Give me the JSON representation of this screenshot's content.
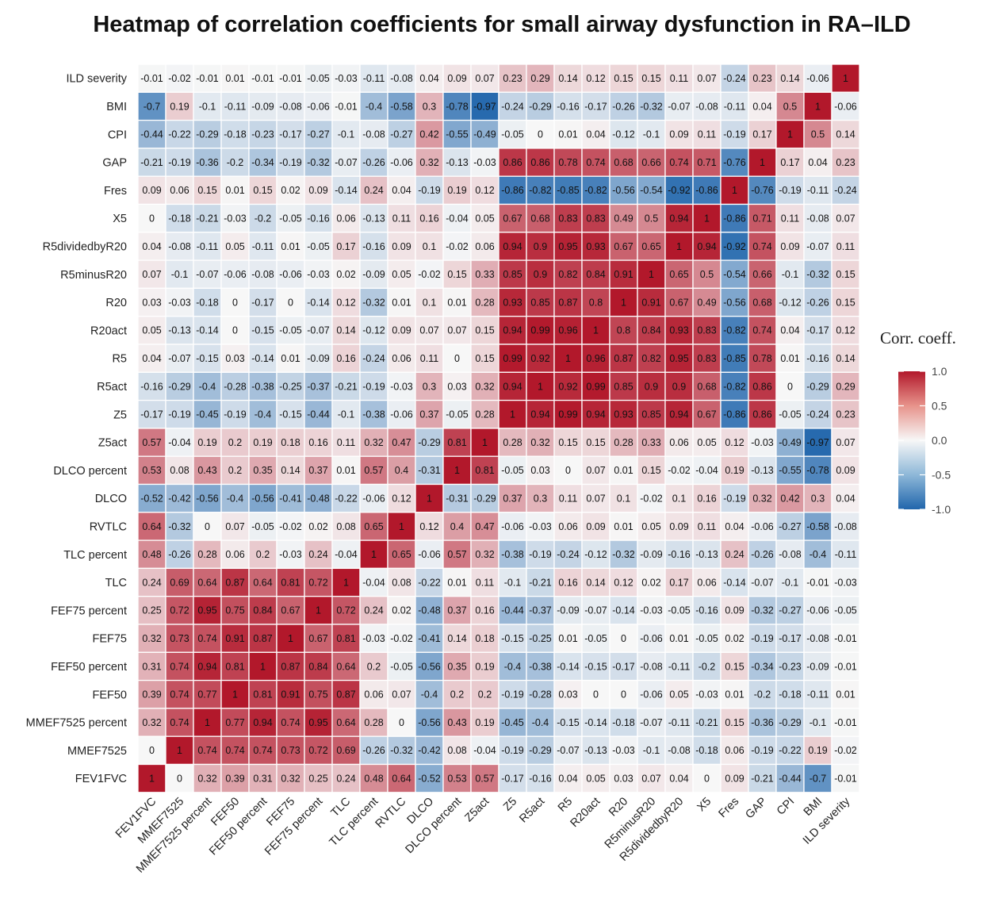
{
  "chart_data": {
    "type": "heatmap",
    "title": "Heatmap of correlation coefficients for small airway dysfunction in RA–ILD",
    "legend": {
      "title": "Corr. coeff.",
      "position": "right",
      "ticks": [
        "1.0",
        "0.5",
        "0.0",
        "-0.5",
        "-1.0"
      ],
      "range": [
        -1,
        1
      ]
    },
    "colors": {
      "low": "#2166ac",
      "mid": "#f7f7f7",
      "high": "#b2182b",
      "grid": "#ffffff"
    },
    "x_labels": [
      "FEV1FVC",
      "MMEF7525",
      "MMEF7525 percent",
      "FEF50",
      "FEF50 percent",
      "FEF75",
      "FEF75 percent",
      "TLC",
      "TLC percent",
      "RVTLC",
      "DLCO",
      "DLCO percent",
      "Z5act",
      "Z5",
      "R5act",
      "R5",
      "R20act",
      "R20",
      "R5minusR20",
      "R5dividedbyR20",
      "X5",
      "Fres",
      "GAP",
      "CPI",
      "BMI",
      "ILD severity"
    ],
    "y_labels": [
      "ILD severity",
      "BMI",
      "CPI",
      "GAP",
      "Fres",
      "X5",
      "R5dividedbyR20",
      "R5minusR20",
      "R20",
      "R20act",
      "R5",
      "R5act",
      "Z5",
      "Z5act",
      "DLCO percent",
      "DLCO",
      "RVTLC",
      "TLC percent",
      "TLC",
      "FEF75 percent",
      "FEF75",
      "FEF50 percent",
      "FEF50",
      "MMEF7525 percent",
      "MMEF7525",
      "FEV1FVC"
    ],
    "values": [
      [
        "-0.01",
        "-0.02",
        "-0.01",
        "0.01",
        "-0.01",
        "-0.01",
        "-0.05",
        "-0.03",
        "-0.11",
        "-0.08",
        "0.04",
        "0.09",
        "0.07",
        "0.23",
        "0.29",
        "0.14",
        "0.12",
        "0.15",
        "0.15",
        "0.11",
        "0.07",
        "-0.24",
        "0.23",
        "0.14",
        "-0.06",
        "1"
      ],
      [
        "-0.7",
        "0.19",
        "-0.1",
        "-0.11",
        "-0.09",
        "-0.08",
        "-0.06",
        "-0.01",
        "-0.4",
        "-0.58",
        "0.3",
        "-0.78",
        "-0.97",
        "-0.24",
        "-0.29",
        "-0.16",
        "-0.17",
        "-0.26",
        "-0.32",
        "-0.07",
        "-0.08",
        "-0.11",
        "0.04",
        "0.5",
        "1",
        "-0.06"
      ],
      [
        "-0.44",
        "-0.22",
        "-0.29",
        "-0.18",
        "-0.23",
        "-0.17",
        "-0.27",
        "-0.1",
        "-0.08",
        "-0.27",
        "0.42",
        "-0.55",
        "-0.49",
        "-0.05",
        "0",
        "0.01",
        "0.04",
        "-0.12",
        "-0.1",
        "0.09",
        "0.11",
        "-0.19",
        "0.17",
        "1",
        "0.5",
        "0.14"
      ],
      [
        "-0.21",
        "-0.19",
        "-0.36",
        "-0.2",
        "-0.34",
        "-0.19",
        "-0.32",
        "-0.07",
        "-0.26",
        "-0.06",
        "0.32",
        "-0.13",
        "-0.03",
        "0.86",
        "0.86",
        "0.78",
        "0.74",
        "0.68",
        "0.66",
        "0.74",
        "0.71",
        "-0.76",
        "1",
        "0.17",
        "0.04",
        "0.23"
      ],
      [
        "0.09",
        "0.06",
        "0.15",
        "0.01",
        "0.15",
        "0.02",
        "0.09",
        "-0.14",
        "0.24",
        "0.04",
        "-0.19",
        "0.19",
        "0.12",
        "-0.86",
        "-0.82",
        "-0.85",
        "-0.82",
        "-0.56",
        "-0.54",
        "-0.92",
        "-0.86",
        "1",
        "-0.76",
        "-0.19",
        "-0.11",
        "-0.24"
      ],
      [
        "0",
        "-0.18",
        "-0.21",
        "-0.03",
        "-0.2",
        "-0.05",
        "-0.16",
        "0.06",
        "-0.13",
        "0.11",
        "0.16",
        "-0.04",
        "0.05",
        "0.67",
        "0.68",
        "0.83",
        "0.83",
        "0.49",
        "0.5",
        "0.94",
        "1",
        "-0.86",
        "0.71",
        "0.11",
        "-0.08",
        "0.07"
      ],
      [
        "0.04",
        "-0.08",
        "-0.11",
        "0.05",
        "-0.11",
        "0.01",
        "-0.05",
        "0.17",
        "-0.16",
        "0.09",
        "0.1",
        "-0.02",
        "0.06",
        "0.94",
        "0.9",
        "0.95",
        "0.93",
        "0.67",
        "0.65",
        "1",
        "0.94",
        "-0.92",
        "0.74",
        "0.09",
        "-0.07",
        "0.11"
      ],
      [
        "0.07",
        "-0.1",
        "-0.07",
        "-0.06",
        "-0.08",
        "-0.06",
        "-0.03",
        "0.02",
        "-0.09",
        "0.05",
        "-0.02",
        "0.15",
        "0.33",
        "0.85",
        "0.9",
        "0.82",
        "0.84",
        "0.91",
        "1",
        "0.65",
        "0.5",
        "-0.54",
        "0.66",
        "-0.1",
        "-0.32",
        "0.15"
      ],
      [
        "0.03",
        "-0.03",
        "-0.18",
        "0",
        "-0.17",
        "0",
        "-0.14",
        "0.12",
        "-0.32",
        "0.01",
        "0.1",
        "0.01",
        "0.28",
        "0.93",
        "0.85",
        "0.87",
        "0.8",
        "1",
        "0.91",
        "0.67",
        "0.49",
        "-0.56",
        "0.68",
        "-0.12",
        "-0.26",
        "0.15"
      ],
      [
        "0.05",
        "-0.13",
        "-0.14",
        "0",
        "-0.15",
        "-0.05",
        "-0.07",
        "0.14",
        "-0.12",
        "0.09",
        "0.07",
        "0.07",
        "0.15",
        "0.94",
        "0.99",
        "0.96",
        "1",
        "0.8",
        "0.84",
        "0.93",
        "0.83",
        "-0.82",
        "0.74",
        "0.04",
        "-0.17",
        "0.12"
      ],
      [
        "0.04",
        "-0.07",
        "-0.15",
        "0.03",
        "-0.14",
        "0.01",
        "-0.09",
        "0.16",
        "-0.24",
        "0.06",
        "0.11",
        "0",
        "0.15",
        "0.99",
        "0.92",
        "1",
        "0.96",
        "0.87",
        "0.82",
        "0.95",
        "0.83",
        "-0.85",
        "0.78",
        "0.01",
        "-0.16",
        "0.14"
      ],
      [
        "-0.16",
        "-0.29",
        "-0.4",
        "-0.28",
        "-0.38",
        "-0.25",
        "-0.37",
        "-0.21",
        "-0.19",
        "-0.03",
        "0.3",
        "0.03",
        "0.32",
        "0.94",
        "1",
        "0.92",
        "0.99",
        "0.85",
        "0.9",
        "0.9",
        "0.68",
        "-0.82",
        "0.86",
        "0",
        "-0.29",
        "0.29"
      ],
      [
        "-0.17",
        "-0.19",
        "-0.45",
        "-0.19",
        "-0.4",
        "-0.15",
        "-0.44",
        "-0.1",
        "-0.38",
        "-0.06",
        "0.37",
        "-0.05",
        "0.28",
        "1",
        "0.94",
        "0.99",
        "0.94",
        "0.93",
        "0.85",
        "0.94",
        "0.67",
        "-0.86",
        "0.86",
        "-0.05",
        "-0.24",
        "0.23"
      ],
      [
        "0.57",
        "-0.04",
        "0.19",
        "0.2",
        "0.19",
        "0.18",
        "0.16",
        "0.11",
        "0.32",
        "0.47",
        "-0.29",
        "0.81",
        "1",
        "0.28",
        "0.32",
        "0.15",
        "0.15",
        "0.28",
        "0.33",
        "0.06",
        "0.05",
        "0.12",
        "-0.03",
        "-0.49",
        "-0.97",
        "0.07"
      ],
      [
        "0.53",
        "0.08",
        "0.43",
        "0.2",
        "0.35",
        "0.14",
        "0.37",
        "0.01",
        "0.57",
        "0.4",
        "-0.31",
        "1",
        "0.81",
        "-0.05",
        "0.03",
        "0",
        "0.07",
        "0.01",
        "0.15",
        "-0.02",
        "-0.04",
        "0.19",
        "-0.13",
        "-0.55",
        "-0.78",
        "0.09"
      ],
      [
        "-0.52",
        "-0.42",
        "-0.56",
        "-0.4",
        "-0.56",
        "-0.41",
        "-0.48",
        "-0.22",
        "-0.06",
        "0.12",
        "1",
        "-0.31",
        "-0.29",
        "0.37",
        "0.3",
        "0.11",
        "0.07",
        "0.1",
        "-0.02",
        "0.1",
        "0.16",
        "-0.19",
        "0.32",
        "0.42",
        "0.3",
        "0.04"
      ],
      [
        "0.64",
        "-0.32",
        "0",
        "0.07",
        "-0.05",
        "-0.02",
        "0.02",
        "0.08",
        "0.65",
        "1",
        "0.12",
        "0.4",
        "0.47",
        "-0.06",
        "-0.03",
        "0.06",
        "0.09",
        "0.01",
        "0.05",
        "0.09",
        "0.11",
        "0.04",
        "-0.06",
        "-0.27",
        "-0.58",
        "-0.08"
      ],
      [
        "0.48",
        "-0.26",
        "0.28",
        "0.06",
        "0.2",
        "-0.03",
        "0.24",
        "-0.04",
        "1",
        "0.65",
        "-0.06",
        "0.57",
        "0.32",
        "-0.38",
        "-0.19",
        "-0.24",
        "-0.12",
        "-0.32",
        "-0.09",
        "-0.16",
        "-0.13",
        "0.24",
        "-0.26",
        "-0.08",
        "-0.4",
        "-0.11"
      ],
      [
        "0.24",
        "0.69",
        "0.64",
        "0.87",
        "0.64",
        "0.81",
        "0.72",
        "1",
        "-0.04",
        "0.08",
        "-0.22",
        "0.01",
        "0.11",
        "-0.1",
        "-0.21",
        "0.16",
        "0.14",
        "0.12",
        "0.02",
        "0.17",
        "0.06",
        "-0.14",
        "-0.07",
        "-0.1",
        "-0.01",
        "-0.03"
      ],
      [
        "0.25",
        "0.72",
        "0.95",
        "0.75",
        "0.84",
        "0.67",
        "1",
        "0.72",
        "0.24",
        "0.02",
        "-0.48",
        "0.37",
        "0.16",
        "-0.44",
        "-0.37",
        "-0.09",
        "-0.07",
        "-0.14",
        "-0.03",
        "-0.05",
        "-0.16",
        "0.09",
        "-0.32",
        "-0.27",
        "-0.06",
        "-0.05"
      ],
      [
        "0.32",
        "0.73",
        "0.74",
        "0.91",
        "0.87",
        "1",
        "0.67",
        "0.81",
        "-0.03",
        "-0.02",
        "-0.41",
        "0.14",
        "0.18",
        "-0.15",
        "-0.25",
        "0.01",
        "-0.05",
        "0",
        "-0.06",
        "0.01",
        "-0.05",
        "0.02",
        "-0.19",
        "-0.17",
        "-0.08",
        "-0.01"
      ],
      [
        "0.31",
        "0.74",
        "0.94",
        "0.81",
        "1",
        "0.87",
        "0.84",
        "0.64",
        "0.2",
        "-0.05",
        "-0.56",
        "0.35",
        "0.19",
        "-0.4",
        "-0.38",
        "-0.14",
        "-0.15",
        "-0.17",
        "-0.08",
        "-0.11",
        "-0.2",
        "0.15",
        "-0.34",
        "-0.23",
        "-0.09",
        "-0.01"
      ],
      [
        "0.39",
        "0.74",
        "0.77",
        "1",
        "0.81",
        "0.91",
        "0.75",
        "0.87",
        "0.06",
        "0.07",
        "-0.4",
        "0.2",
        "0.2",
        "-0.19",
        "-0.28",
        "0.03",
        "0",
        "0",
        "-0.06",
        "0.05",
        "-0.03",
        "0.01",
        "-0.2",
        "-0.18",
        "-0.11",
        "0.01"
      ],
      [
        "0.32",
        "0.74",
        "1",
        "0.77",
        "0.94",
        "0.74",
        "0.95",
        "0.64",
        "0.28",
        "0",
        "-0.56",
        "0.43",
        "0.19",
        "-0.45",
        "-0.4",
        "-0.15",
        "-0.14",
        "-0.18",
        "-0.07",
        "-0.11",
        "-0.21",
        "0.15",
        "-0.36",
        "-0.29",
        "-0.1",
        "-0.01"
      ],
      [
        "0",
        "1",
        "0.74",
        "0.74",
        "0.74",
        "0.73",
        "0.72",
        "0.69",
        "-0.26",
        "-0.32",
        "-0.42",
        "0.08",
        "-0.04",
        "-0.19",
        "-0.29",
        "-0.07",
        "-0.13",
        "-0.03",
        "-0.1",
        "-0.08",
        "-0.18",
        "0.06",
        "-0.19",
        "-0.22",
        "0.19",
        "-0.02"
      ],
      [
        "1",
        "0",
        "0.32",
        "0.39",
        "0.31",
        "0.32",
        "0.25",
        "0.24",
        "0.48",
        "0.64",
        "-0.52",
        "0.53",
        "0.57",
        "-0.17",
        "-0.16",
        "0.04",
        "0.05",
        "0.03",
        "0.07",
        "0.04",
        "0",
        "0.09",
        "-0.21",
        "-0.44",
        "-0.7",
        "-0.01"
      ]
    ]
  }
}
